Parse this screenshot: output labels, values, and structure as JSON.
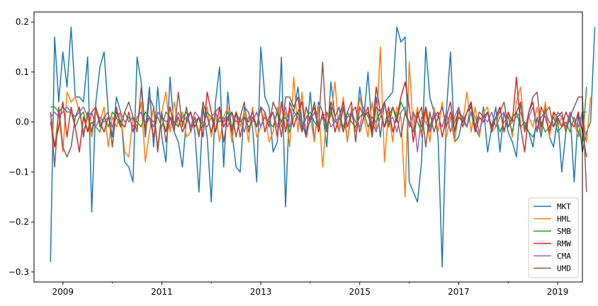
{
  "chart_data": {
    "type": "line",
    "title": "",
    "xlabel": "",
    "ylabel": "",
    "x_start": "2008-10",
    "x_end": "2019-02",
    "xlim": [
      "2008-06",
      "2019-07"
    ],
    "ylim": [
      -0.32,
      0.22
    ],
    "xticks": [
      "2009",
      "2011",
      "2013",
      "2015",
      "2017",
      "2019"
    ],
    "yticks": [
      0.2,
      0.1,
      0.0,
      -0.1,
      -0.2,
      -0.3
    ],
    "ytick_labels": [
      "0.2",
      "0.1",
      "0.0",
      "−0.1",
      "−0.2",
      "−0.3"
    ],
    "grid": false,
    "legend_position": "lower-right",
    "series": [
      {
        "name": "MKT",
        "color": "#1f77b4",
        "values": [
          -0.28,
          0.17,
          0.04,
          0.14,
          0.07,
          0.19,
          0.05,
          0.05,
          0.04,
          0.13,
          -0.18,
          0.04,
          0.11,
          0.14,
          0.02,
          -0.03,
          0.05,
          0.02,
          -0.08,
          -0.09,
          -0.12,
          0.13,
          0.08,
          -0.02,
          0.07,
          -0.05,
          0.07,
          -0.03,
          -0.08,
          0.09,
          -0.02,
          -0.04,
          -0.09,
          0.01,
          0.02,
          -0.02,
          -0.14,
          0.03,
          -0.03,
          -0.16,
          0.04,
          0.11,
          -0.09,
          0.06,
          -0.02,
          -0.09,
          -0.1,
          0.03,
          0.02,
          -0.01,
          -0.12,
          0.15,
          0.05,
          0.03,
          -0.06,
          -0.04,
          0.13,
          -0.17,
          0.04,
          0.02,
          0.07,
          0.0,
          -0.03,
          0.06,
          -0.04,
          0.04,
          0.02,
          -0.05,
          0.08,
          0.01,
          -0.02,
          0.03,
          -0.04,
          0.02,
          -0.02,
          0.07,
          0.01,
          0.1,
          -0.02,
          0.05,
          -0.03,
          0.04,
          0.05,
          0.06,
          0.19,
          0.16,
          0.17,
          -0.12,
          -0.14,
          -0.16,
          -0.08,
          0.15,
          0.05,
          0.02,
          -0.03,
          -0.29,
          0.02,
          0.14,
          -0.04,
          -0.03,
          0.01,
          -0.01,
          0.04,
          -0.01,
          -0.03,
          0.03,
          -0.06,
          -0.01,
          0.03,
          -0.06,
          0.02,
          -0.02,
          -0.04,
          -0.07,
          0.04,
          -0.01,
          -0.02,
          -0.05,
          0.01,
          -0.03,
          0.03,
          -0.03,
          -0.05,
          0.01,
          -0.1,
          -0.02,
          0.02,
          -0.12,
          0.02,
          -0.06,
          -0.02,
          0.0,
          0.19
        ]
      },
      {
        "name": "HML",
        "color": "#ff7f0e",
        "values": [
          0.02,
          -0.05,
          0.02,
          -0.06,
          0.06,
          0.04,
          0.05,
          0.02,
          -0.02,
          0.01,
          -0.03,
          0.02,
          0.0,
          0.03,
          -0.05,
          0.01,
          -0.01,
          0.02,
          -0.06,
          -0.07,
          0.01,
          -0.01,
          0.04,
          -0.08,
          -0.02,
          0.03,
          -0.05,
          0.02,
          0.06,
          -0.02,
          0.04,
          -0.01,
          0.02,
          -0.03,
          -0.02,
          0.01,
          -0.02,
          -0.01,
          0.03,
          -0.03,
          0.02,
          -0.04,
          0.01,
          0.03,
          -0.04,
          0.02,
          -0.01,
          0.02,
          -0.04,
          0.03,
          -0.03,
          -0.01,
          0.02,
          -0.04,
          -0.02,
          0.03,
          -0.01,
          0.02,
          -0.05,
          0.09,
          -0.02,
          0.06,
          -0.03,
          0.01,
          -0.04,
          0.03,
          -0.09,
          0.02,
          0.01,
          0.08,
          -0.02,
          0.05,
          -0.04,
          0.03,
          -0.02,
          0.05,
          0.01,
          -0.03,
          0.04,
          -0.02,
          0.15,
          -0.08,
          0.02,
          -0.04,
          0.03,
          0.01,
          -0.15,
          0.12,
          -0.02,
          0.03,
          -0.03,
          0.02,
          -0.04,
          0.03,
          -0.02,
          0.04,
          -0.03,
          0.01,
          -0.04,
          0.02,
          0.0,
          0.06,
          -0.02,
          0.03,
          -0.03,
          0.02,
          0.03,
          -0.02,
          -0.01,
          0.03,
          -0.02,
          0.02,
          -0.03,
          0.04,
          0.07,
          -0.02,
          0.01,
          -0.01,
          0.03,
          -0.02,
          0.04,
          -0.03,
          0.02,
          -0.01,
          0.01,
          -0.02,
          0.02,
          0.0,
          -0.03,
          0.02,
          -0.04,
          0.05
        ]
      },
      {
        "name": "SMB",
        "color": "#2ca02c",
        "values": [
          0.03,
          0.03,
          0.02,
          0.03,
          0.02,
          0.02,
          -0.01,
          0.01,
          0.02,
          -0.02,
          0.0,
          -0.01,
          -0.02,
          0.01,
          -0.01,
          0.02,
          0.01,
          -0.01,
          0.02,
          0.0,
          0.01,
          0.0,
          -0.01,
          0.02,
          0.01,
          0.0,
          0.01,
          -0.01,
          0.02,
          0.01,
          0.0,
          -0.01,
          0.01,
          0.02,
          -0.01,
          0.0,
          0.01,
          -0.01,
          0.02,
          0.01,
          -0.02,
          0.01,
          0.0,
          0.02,
          -0.01,
          0.02,
          0.0,
          0.01,
          -0.01,
          0.0,
          0.02,
          -0.01,
          0.01,
          0.0,
          -0.01,
          0.02,
          0.0,
          0.01,
          -0.02,
          0.01,
          0.02,
          -0.01,
          0.01,
          0.02,
          0.0,
          -0.01,
          0.01,
          -0.02,
          0.02,
          0.0,
          0.01,
          -0.01,
          0.02,
          0.0,
          -0.01,
          0.01,
          0.02,
          -0.01,
          0.01,
          0.0,
          0.02,
          -0.01,
          0.01,
          0.03,
          0.0,
          0.04,
          0.02,
          -0.01,
          0.02,
          0.0,
          -0.02,
          0.03,
          -0.01,
          0.02,
          0.01,
          -0.01,
          0.02,
          -0.02,
          0.0,
          0.02,
          0.01,
          -0.01,
          0.02,
          -0.02,
          0.01,
          0.0,
          0.02,
          -0.01,
          0.01,
          -0.02,
          0.0,
          0.01,
          -0.02,
          0.02,
          -0.01,
          0.0,
          -0.02,
          -0.03,
          -0.01,
          0.0,
          -0.02,
          -0.01,
          0.01,
          -0.02,
          -0.01,
          0.0,
          -0.02,
          0.01,
          -0.02,
          -0.04,
          0.07
        ]
      },
      {
        "name": "RMW",
        "color": "#d62728",
        "values": [
          0.0,
          -0.05,
          -0.01,
          0.04,
          -0.03,
          0.03,
          -0.01,
          -0.06,
          0.01,
          -0.02,
          0.02,
          0.03,
          0.0,
          -0.02,
          0.01,
          -0.01,
          0.02,
          0.0,
          -0.01,
          0.02,
          -0.02,
          0.01,
          0.02,
          -0.01,
          0.01,
          -0.03,
          0.02,
          0.01,
          -0.02,
          0.03,
          -0.01,
          0.01,
          -0.02,
          0.0,
          0.02,
          -0.01,
          0.01,
          -0.03,
          0.06,
          0.02,
          -0.02,
          0.03,
          -0.01,
          0.01,
          -0.02,
          0.02,
          -0.03,
          0.01,
          0.0,
          0.02,
          -0.01,
          0.03,
          -0.02,
          0.01,
          0.02,
          -0.03,
          0.04,
          -0.02,
          0.03,
          -0.01,
          0.02,
          0.04,
          -0.03,
          0.01,
          0.03,
          -0.02,
          0.02,
          -0.01,
          0.03,
          -0.02,
          0.01,
          0.04,
          -0.01,
          0.02,
          0.03,
          -0.02,
          0.01,
          0.03,
          -0.02,
          0.07,
          0.02,
          -0.01,
          0.03,
          -0.02,
          0.01,
          0.05,
          0.08,
          0.03,
          -0.04,
          0.02,
          -0.01,
          0.03,
          -0.02,
          0.01,
          0.02,
          -0.03,
          0.01,
          0.04,
          -0.02,
          0.03,
          -0.01,
          0.02,
          0.04,
          -0.02,
          0.01,
          0.0,
          0.02,
          -0.01,
          0.01,
          0.03,
          -0.02,
          0.02,
          0.0,
          0.09,
          -0.01,
          -0.06,
          0.02,
          0.04,
          -0.02,
          0.03,
          0.01,
          -0.02,
          0.02,
          0.01,
          -0.01,
          0.02,
          0.0,
          -0.01,
          0.02,
          -0.02,
          -0.07
        ]
      },
      {
        "name": "CMA",
        "color": "#9467bd",
        "values": [
          0.01,
          0.02,
          0.01,
          0.02,
          0.03,
          0.02,
          0.01,
          0.02,
          0.03,
          0.01,
          0.02,
          -0.01,
          0.01,
          0.0,
          0.01,
          -0.01,
          0.01,
          0.02,
          0.0,
          0.01,
          -0.01,
          0.01,
          0.02,
          0.0,
          0.01,
          -0.01,
          0.02,
          0.01,
          0.0,
          0.01,
          -0.01,
          0.02,
          0.0,
          0.01,
          -0.01,
          0.02,
          0.01,
          0.0,
          -0.01,
          0.01,
          0.02,
          0.0,
          0.01,
          -0.01,
          0.02,
          0.0,
          0.01,
          -0.02,
          0.01,
          0.0,
          0.02,
          -0.01,
          0.01,
          0.0,
          0.02,
          -0.01,
          0.0,
          0.03,
          -0.01,
          0.02,
          0.01,
          -0.02,
          0.01,
          0.0,
          0.02,
          -0.01,
          0.01,
          0.02,
          -0.01,
          0.0,
          0.01,
          -0.02,
          0.01,
          0.02,
          0.0,
          -0.01,
          0.03,
          0.01,
          0.0,
          -0.02,
          0.01,
          0.04,
          0.0,
          0.01,
          -0.02,
          0.02,
          0.03,
          -0.01,
          0.02,
          -0.06,
          0.01,
          0.0,
          -0.02,
          0.02,
          0.01,
          -0.01,
          0.02,
          -0.02,
          0.01,
          0.03,
          0.0,
          -0.01,
          0.02,
          0.01,
          -0.02,
          0.01,
          0.0,
          0.02,
          -0.01,
          0.01,
          0.02,
          -0.01,
          0.0,
          0.01,
          0.02,
          -0.01,
          0.01,
          0.03,
          -0.02,
          0.01,
          0.02,
          0.0,
          -0.01,
          0.02,
          0.01,
          -0.01,
          0.02,
          0.0,
          -0.01,
          0.02,
          0.02
        ]
      },
      {
        "name": "UMD",
        "color": "#8c564b",
        "values": [
          0.02,
          -0.09,
          0.03,
          -0.05,
          -0.07,
          -0.05,
          0.01,
          0.03,
          -0.03,
          0.02,
          -0.02,
          0.03,
          -0.01,
          0.01,
          0.02,
          -0.05,
          0.03,
          -0.01,
          0.02,
          0.04,
          0.01,
          -0.02,
          0.07,
          -0.03,
          0.05,
          0.03,
          -0.06,
          0.02,
          -0.04,
          0.01,
          -0.02,
          0.06,
          -0.01,
          0.03,
          -0.02,
          0.01,
          -0.03,
          0.04,
          0.01,
          -0.02,
          0.02,
          0.03,
          -0.04,
          0.01,
          0.02,
          -0.03,
          0.01,
          0.04,
          -0.02,
          0.01,
          -0.01,
          0.03,
          0.02,
          -0.01,
          0.04,
          0.02,
          -0.03,
          0.05,
          0.05,
          0.03,
          0.05,
          -0.02,
          0.03,
          0.0,
          0.04,
          -0.01,
          0.12,
          -0.02,
          0.04,
          0.01,
          0.03,
          -0.02,
          0.02,
          0.04,
          -0.04,
          0.03,
          0.01,
          0.02,
          -0.03,
          0.03,
          0.02,
          0.04,
          -0.01,
          0.03,
          0.01,
          -0.03,
          0.02,
          0.0,
          -0.02,
          0.01,
          0.03,
          -0.05,
          0.02,
          -0.02,
          0.01,
          0.03,
          -0.01,
          0.02,
          -0.02,
          0.01,
          0.0,
          0.02,
          0.03,
          -0.01,
          0.02,
          0.01,
          0.02,
          -0.02,
          0.01,
          0.02,
          0.04,
          -0.01,
          0.01,
          0.02,
          0.04,
          -0.02,
          0.02,
          0.05,
          0.06,
          -0.01,
          0.02,
          0.03,
          -0.01,
          0.01,
          0.02,
          -0.02,
          0.01,
          0.03,
          0.05,
          0.05,
          -0.14
        ]
      }
    ]
  }
}
